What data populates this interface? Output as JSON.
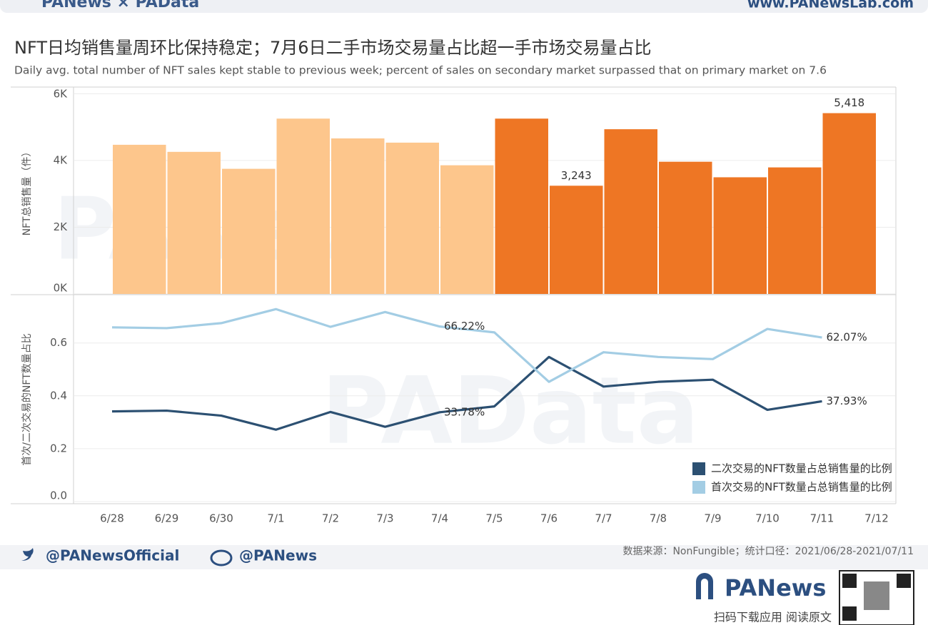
{
  "header": {
    "brand": "PANews × PAData",
    "site": "www.PANewsLab.com"
  },
  "title": "NFT日均销售量周环比保持稳定；7月6日二手市场交易量占比超一手市场交易量占比",
  "subtitle": "Daily avg. total number of NFT sales kept stable to previous week; percent of sales on secondary market surpassed that on primary market on 7.6",
  "watermarks": [
    "PANews",
    "PAData"
  ],
  "chart_data": [
    {
      "type": "bar",
      "y_label": "NFT总销售量（件）",
      "values": [
        4470,
        4258,
        3750,
        5254,
        4661,
        4534,
        3856,
        5254,
        3243,
        4936,
        3962,
        3496,
        3792,
        5418
      ],
      "value_labels": [
        null,
        null,
        null,
        null,
        null,
        null,
        null,
        null,
        "3,243",
        null,
        null,
        null,
        null,
        "5,418"
      ],
      "colors": [
        "#fdc68c",
        "#fdc68c",
        "#fdc68c",
        "#fdc68c",
        "#fdc68c",
        "#fdc68c",
        "#fdc68c",
        "#ee7624",
        "#ee7624",
        "#ee7624",
        "#ee7624",
        "#ee7624",
        "#ee7624",
        "#ee7624"
      ],
      "ylim": [
        0,
        6200
      ],
      "yticks": [
        {
          "value": 0,
          "label": "0K"
        },
        {
          "value": 2000,
          "label": "2K"
        },
        {
          "value": 4000,
          "label": "4K"
        },
        {
          "value": 6000,
          "label": "6K"
        }
      ],
      "grid": true
    },
    {
      "type": "line",
      "y_label": "首次/二次交易的NFT数量占比",
      "categories": [
        "6/28",
        "6/29",
        "6/30",
        "7/1",
        "7/2",
        "7/3",
        "7/4",
        "7/5",
        "7/6",
        "7/7",
        "7/8",
        "7/9",
        "7/10",
        "7/11",
        "7/12"
      ],
      "series": [
        {
          "name": "二次交易的NFT数量占总销售量的比例",
          "color": "#2c5072",
          "values": [
            0.341,
            0.344,
            0.325,
            0.272,
            0.339,
            0.283,
            0.3378,
            0.36,
            0.547,
            0.435,
            0.453,
            0.461,
            0.347,
            0.3793,
            null
          ],
          "value_labels": [
            null,
            null,
            null,
            null,
            null,
            null,
            "33.78%",
            null,
            null,
            null,
            null,
            null,
            null,
            "37.93%",
            null
          ]
        },
        {
          "name": "首次交易的NFT数量占总销售量的比例",
          "color": "#a3cde4",
          "values": [
            0.659,
            0.656,
            0.675,
            0.728,
            0.661,
            0.717,
            0.6622,
            0.64,
            0.453,
            0.565,
            0.547,
            0.539,
            0.653,
            0.6207,
            null
          ],
          "value_labels": [
            null,
            null,
            null,
            null,
            null,
            null,
            "66.22%",
            null,
            null,
            null,
            null,
            null,
            null,
            "62.07%",
            null
          ]
        }
      ],
      "ylim": [
        0,
        0.78
      ],
      "yticks": [
        {
          "value": 0,
          "label": "0.0"
        },
        0.2,
        0.4,
        0.6
      ],
      "grid": true,
      "legend": "bottom-right"
    }
  ],
  "footer": {
    "twitter": "@PANewsOfficial",
    "weibo": "@PANews",
    "source": "数据来源：NonFungible；统计口径：2021/06/28-2021/07/11",
    "logo": "PANews",
    "qr_caption": "扫码下载应用  阅读原文"
  }
}
